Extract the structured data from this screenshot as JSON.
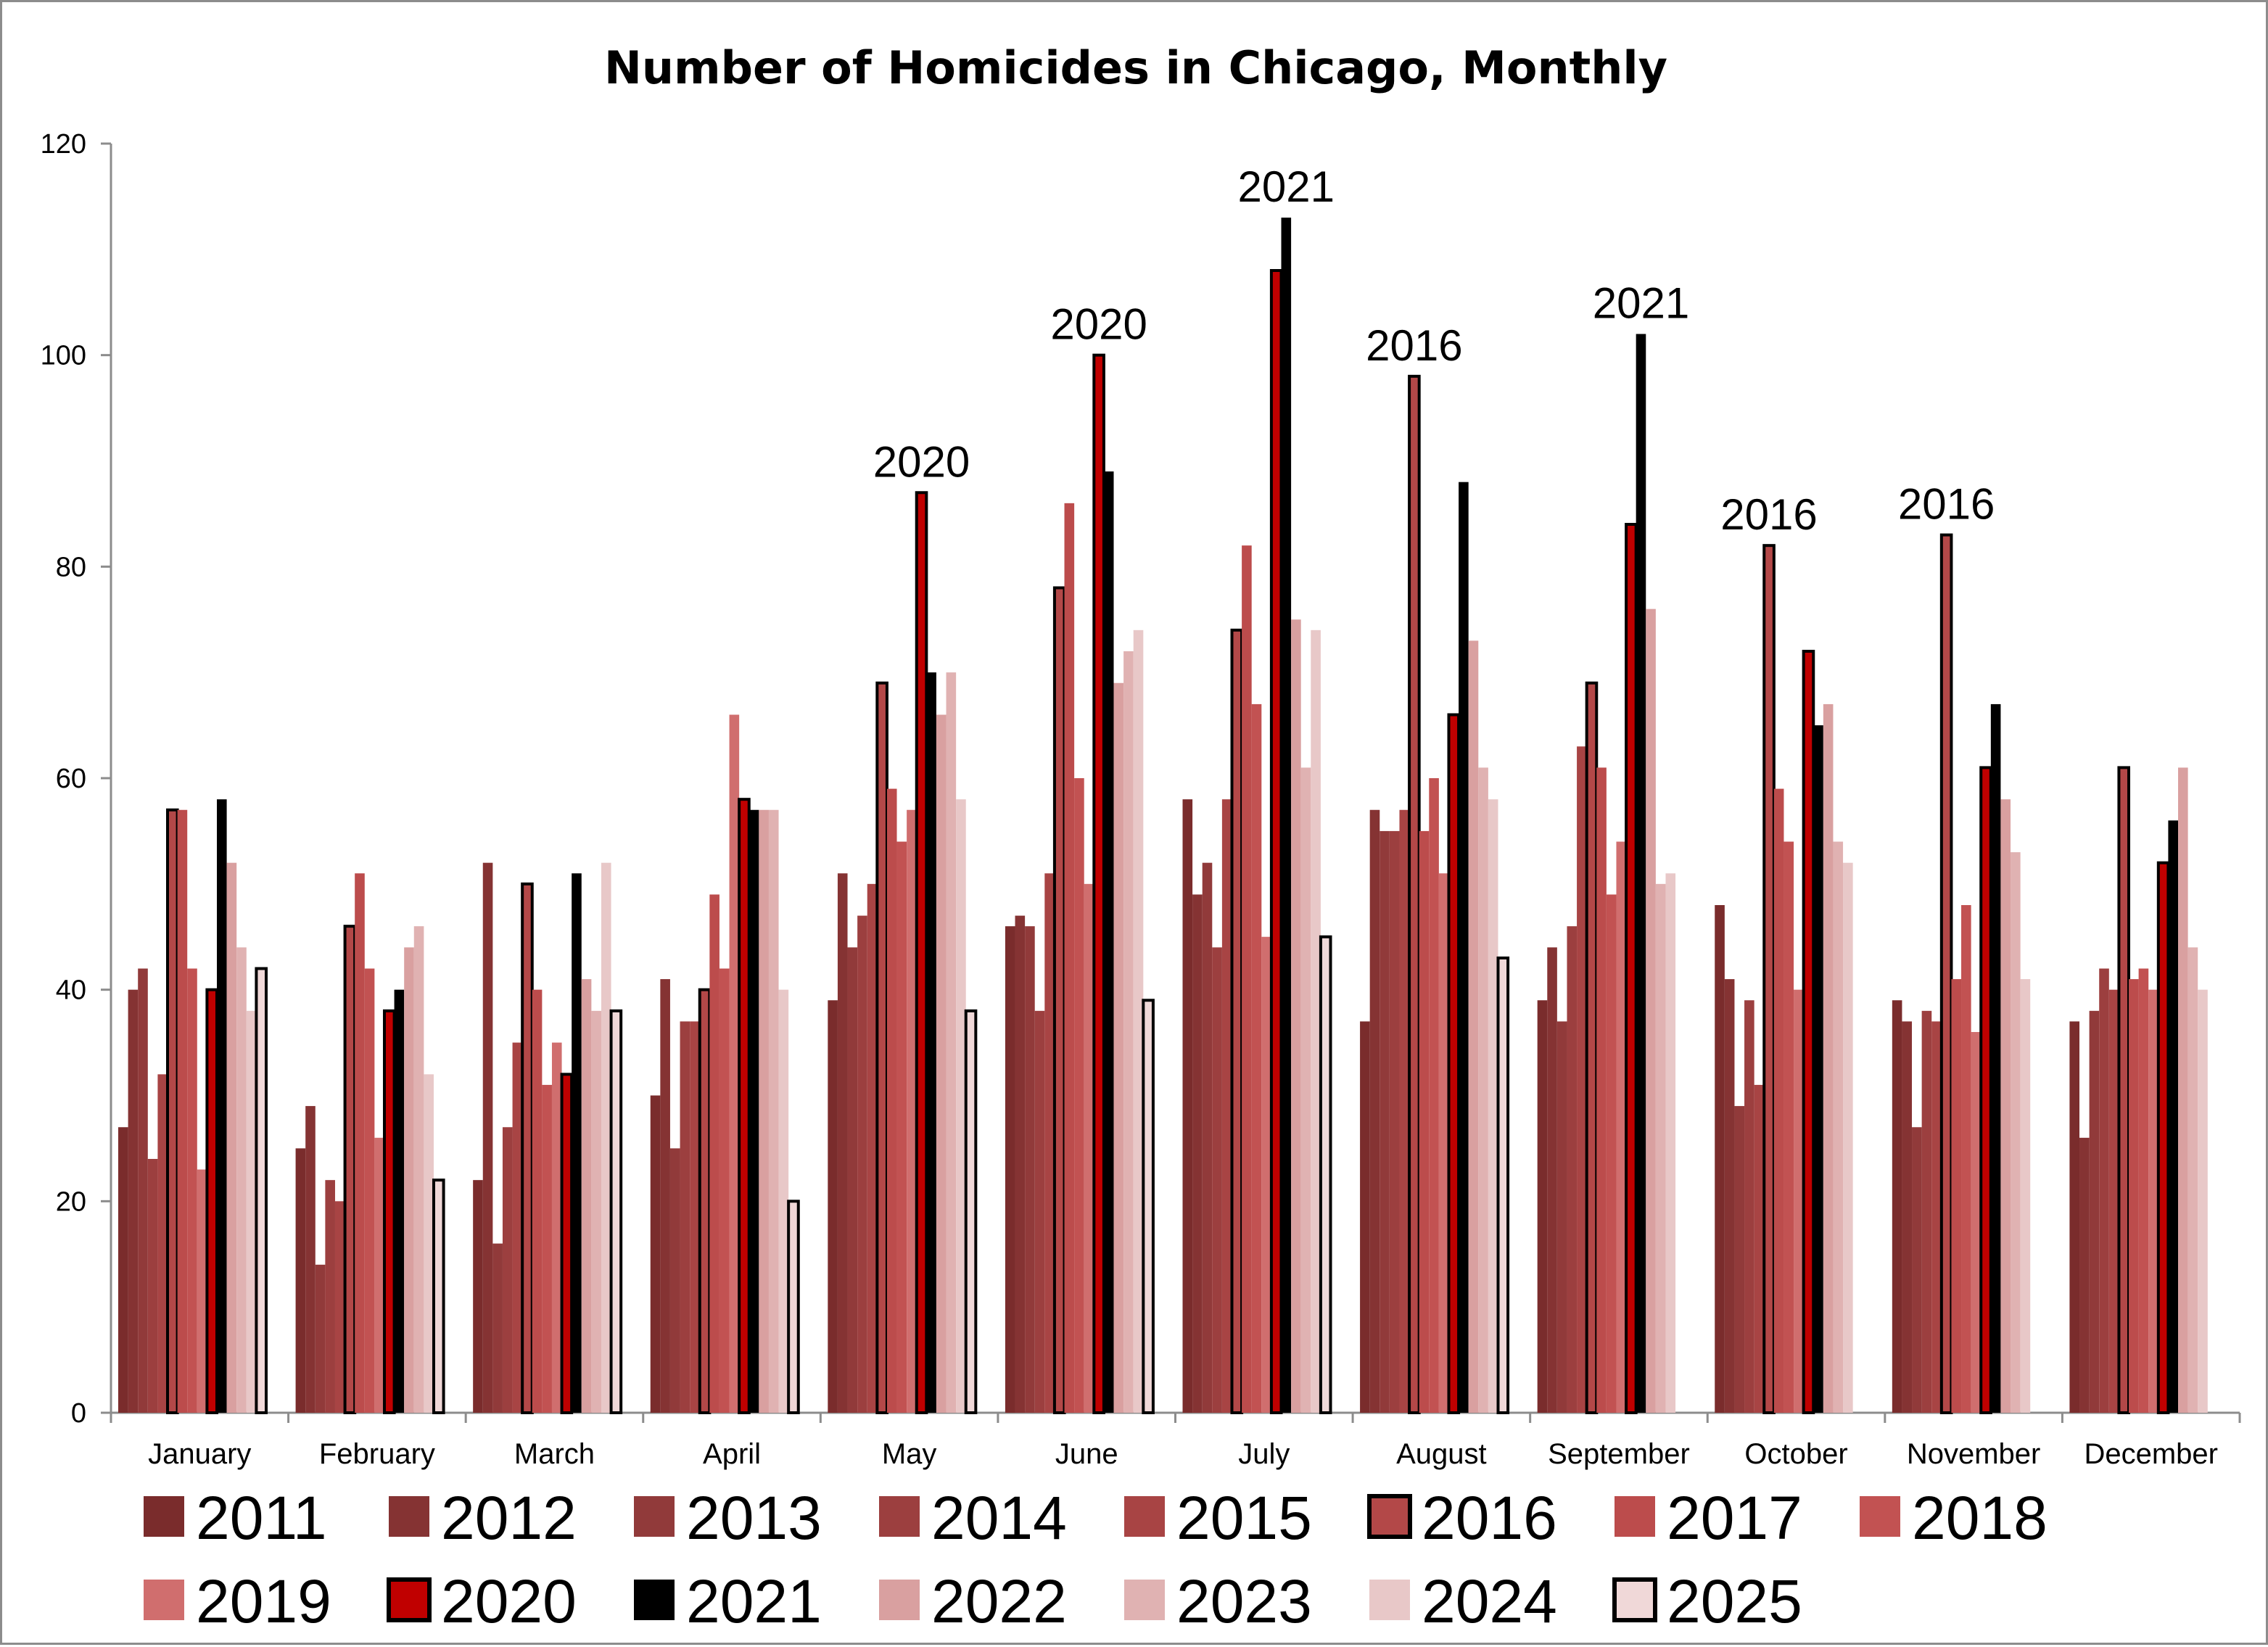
{
  "chart_data": {
    "type": "bar",
    "title": "Number of Homicides in Chicago, Monthly",
    "xlabel": "",
    "ylabel": "",
    "ylim": [
      0,
      120
    ],
    "yticks": [
      0,
      20,
      40,
      60,
      80,
      100,
      120
    ],
    "grid": false,
    "legend_position": "bottom",
    "categories": [
      "January",
      "February",
      "March",
      "April",
      "May",
      "June",
      "July",
      "August",
      "September",
      "October",
      "November",
      "December"
    ],
    "series": [
      {
        "name": "2011",
        "color": "#7a2c2c",
        "outlined": false,
        "values": [
          27,
          25,
          22,
          30,
          39,
          46,
          58,
          37,
          39,
          48,
          39,
          37
        ]
      },
      {
        "name": "2012",
        "color": "#853333",
        "outlined": false,
        "values": [
          40,
          29,
          52,
          41,
          51,
          47,
          49,
          57,
          44,
          41,
          37,
          26
        ]
      },
      {
        "name": "2013",
        "color": "#913a3a",
        "outlined": false,
        "values": [
          42,
          14,
          16,
          25,
          44,
          46,
          52,
          55,
          37,
          29,
          27,
          38
        ]
      },
      {
        "name": "2014",
        "color": "#9c3f3f",
        "outlined": false,
        "values": [
          24,
          22,
          27,
          37,
          47,
          38,
          44,
          55,
          46,
          39,
          38,
          42
        ]
      },
      {
        "name": "2015",
        "color": "#a84444",
        "outlined": false,
        "values": [
          32,
          20,
          35,
          37,
          50,
          51,
          58,
          57,
          63,
          31,
          37,
          40
        ]
      },
      {
        "name": "2016",
        "color": "#b34848",
        "outlined": true,
        "values": [
          57,
          46,
          50,
          40,
          69,
          78,
          74,
          98,
          69,
          82,
          83,
          61
        ]
      },
      {
        "name": "2017",
        "color": "#bc4c4c",
        "outlined": false,
        "values": [
          57,
          51,
          40,
          49,
          59,
          86,
          82,
          55,
          61,
          59,
          41,
          41
        ]
      },
      {
        "name": "2018",
        "color": "#c25252",
        "outlined": false,
        "values": [
          42,
          42,
          31,
          42,
          54,
          60,
          67,
          60,
          49,
          54,
          48,
          42
        ]
      },
      {
        "name": "2019",
        "color": "#d06e6e",
        "outlined": false,
        "values": [
          23,
          26,
          35,
          66,
          57,
          50,
          45,
          51,
          54,
          40,
          36,
          40
        ]
      },
      {
        "name": "2020",
        "color": "#c00000",
        "outlined": true,
        "values": [
          40,
          38,
          32,
          58,
          87,
          100,
          108,
          66,
          84,
          72,
          61,
          52
        ]
      },
      {
        "name": "2021",
        "color": "#000000",
        "outlined": false,
        "values": [
          58,
          40,
          51,
          57,
          70,
          89,
          113,
          88,
          102,
          65,
          67,
          56
        ]
      },
      {
        "name": "2022",
        "color": "#d9a0a0",
        "outlined": false,
        "values": [
          52,
          44,
          41,
          57,
          66,
          69,
          75,
          73,
          76,
          67,
          58,
          61
        ]
      },
      {
        "name": "2023",
        "color": "#e0b2b2",
        "outlined": false,
        "values": [
          44,
          46,
          38,
          57,
          70,
          72,
          61,
          61,
          50,
          54,
          53,
          44
        ]
      },
      {
        "name": "2024",
        "color": "#e8c8c8",
        "outlined": false,
        "values": [
          38,
          32,
          52,
          40,
          58,
          74,
          74,
          58,
          51,
          52,
          41,
          40
        ]
      },
      {
        "name": "2025",
        "color": "#f0d8d8",
        "outlined": true,
        "values": [
          42,
          22,
          38,
          20,
          38,
          39,
          45,
          43,
          null,
          null,
          null,
          null
        ]
      }
    ],
    "annotations": [
      {
        "category": "May",
        "series": "2020",
        "text": "2020"
      },
      {
        "category": "June",
        "series": "2020",
        "text": "2020"
      },
      {
        "category": "July",
        "series": "2021",
        "text": "2021"
      },
      {
        "category": "August",
        "series": "2016",
        "text": "2016"
      },
      {
        "category": "September",
        "series": "2021",
        "text": "2021"
      },
      {
        "category": "October",
        "series": "2016",
        "text": "2016"
      },
      {
        "category": "November",
        "series": "2016",
        "text": "2016"
      }
    ]
  }
}
